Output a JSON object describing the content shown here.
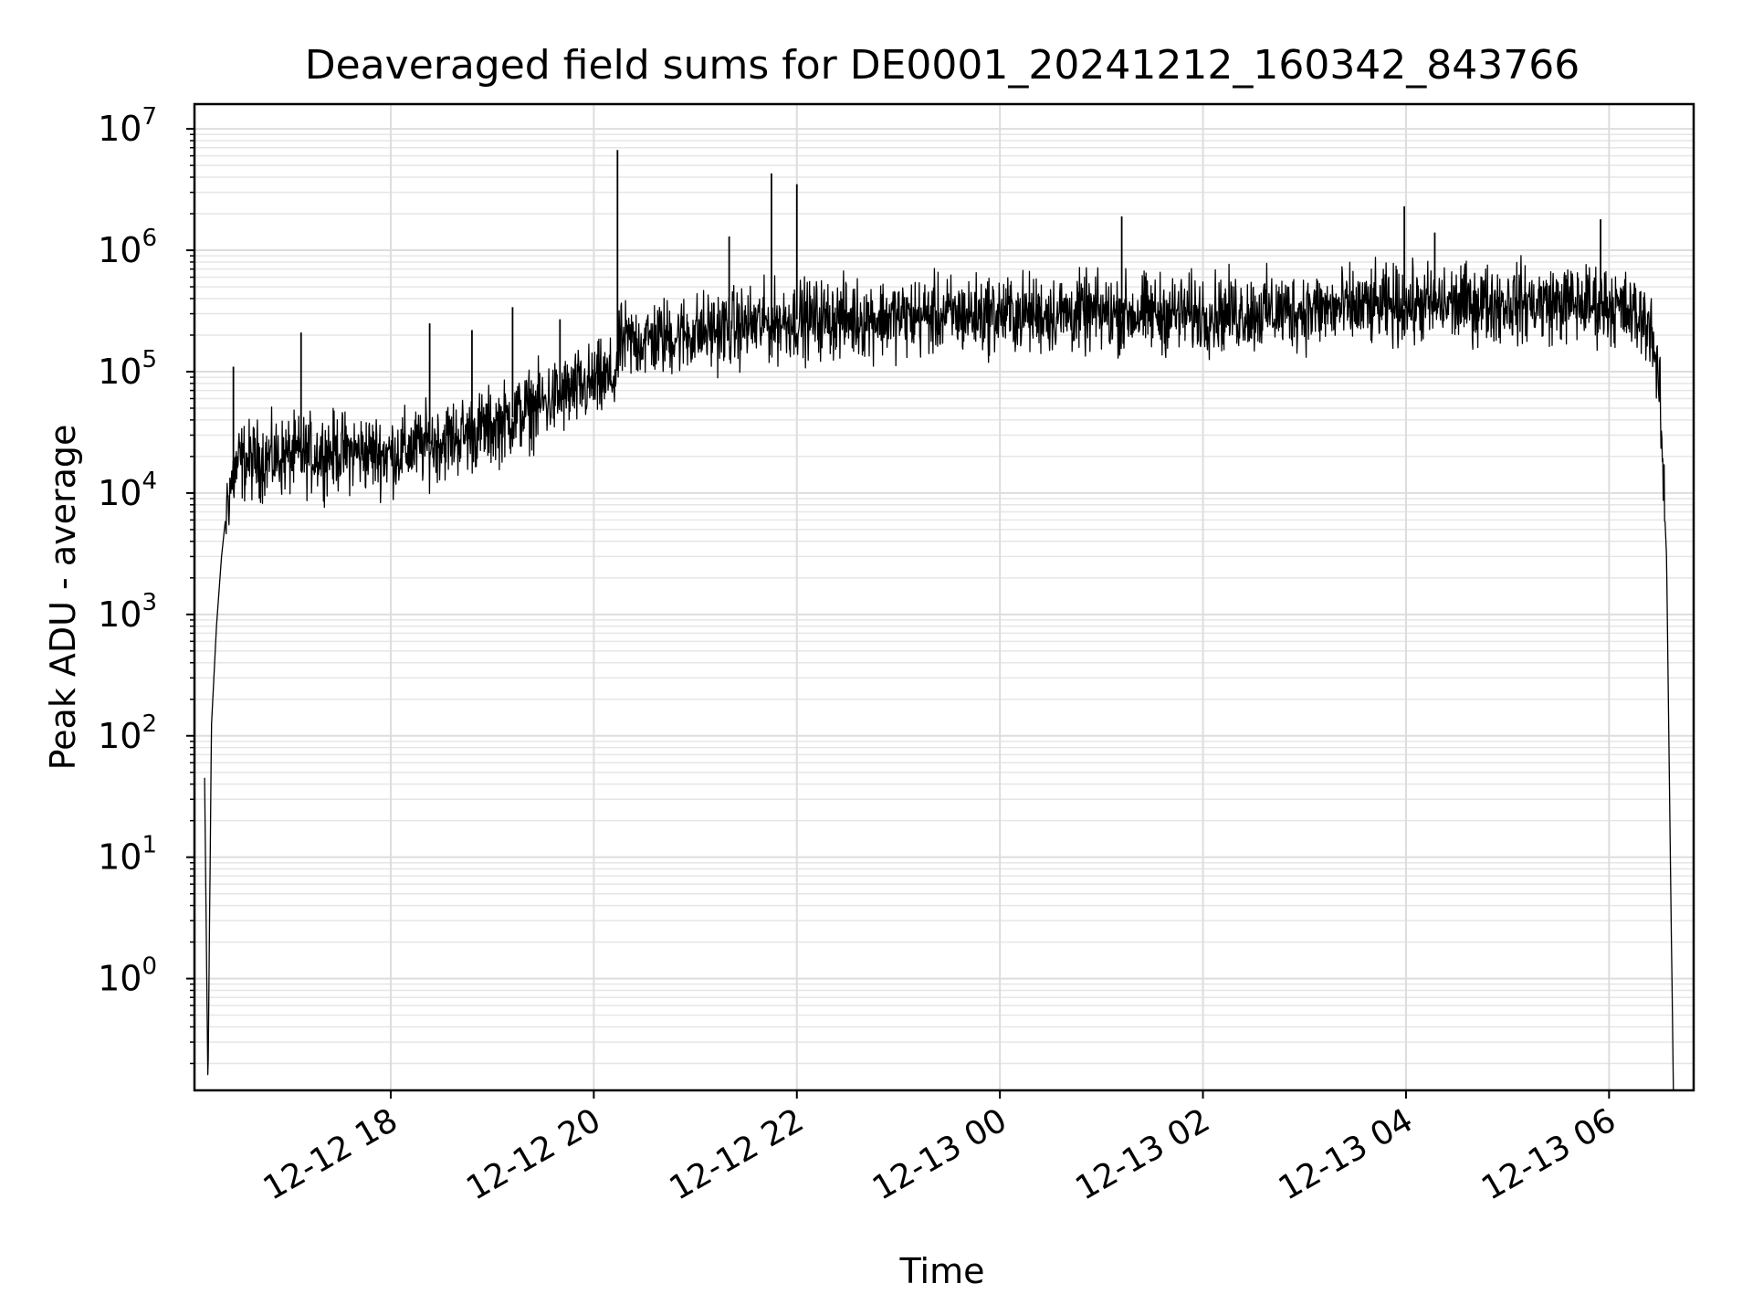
{
  "chart_data": {
    "type": "line",
    "title": "Deaveraged field sums for DE0001_20241212_160342_843766",
    "xlabel": "Time",
    "ylabel": "Peak ADU - average",
    "yscale": "log",
    "ylim": [
      0.12,
      16000000
    ],
    "xlim": [
      "2024-12-12 16:04",
      "2024-12-13 06:50"
    ],
    "grid": "on (major and minor, light gray)",
    "line_color": "#000000",
    "x_ticks": [
      "12-12 18",
      "12-12 20",
      "12-12 22",
      "12-13 00",
      "12-13 02",
      "12-13 04",
      "12-13 06"
    ],
    "y_ticks": [
      {
        "value": 1,
        "base": "10",
        "exponent": "0"
      },
      {
        "value": 10,
        "base": "10",
        "exponent": "1"
      },
      {
        "value": 100,
        "base": "10",
        "exponent": "2"
      },
      {
        "value": 1000,
        "base": "10",
        "exponent": "3"
      },
      {
        "value": 10000,
        "base": "10",
        "exponent": "4"
      },
      {
        "value": 100000,
        "base": "10",
        "exponent": "5"
      },
      {
        "value": 1000000,
        "base": "10",
        "exponent": "6"
      },
      {
        "value": 10000000,
        "base": "10",
        "exponent": "7"
      }
    ],
    "series": [
      {
        "points": [
          [
            "2024-12-12 16:10",
            45
          ],
          [
            "2024-12-12 16:12",
            0.12
          ],
          [
            "2024-12-12 16:14",
            120
          ],
          [
            "2024-12-12 16:17",
            800
          ],
          [
            "2024-12-12 16:20",
            3000
          ],
          [
            "2024-12-12 16:24",
            10000
          ],
          [
            "2024-12-12 16:30",
            18000
          ],
          [
            "2024-12-12 17:00",
            20000
          ],
          [
            "2024-12-12 17:30",
            22000
          ],
          [
            "2024-12-12 18:00",
            21000
          ],
          [
            "2024-12-12 18:30",
            27000
          ],
          [
            "2024-12-12 19:00",
            35000
          ],
          [
            "2024-12-12 19:30",
            55000
          ],
          [
            "2024-12-12 20:00",
            80000
          ],
          [
            "2024-12-12 20:13",
            90000
          ],
          [
            "2024-12-12 20:15",
            170000
          ],
          [
            "2024-12-12 21:00",
            210000
          ],
          [
            "2024-12-12 22:00",
            270000
          ],
          [
            "2024-12-12 23:00",
            280000
          ],
          [
            "2024-12-13 00:00",
            300000
          ],
          [
            "2024-12-13 01:00",
            300000
          ],
          [
            "2024-12-13 02:00",
            300000
          ],
          [
            "2024-12-13 03:00",
            320000
          ],
          [
            "2024-12-13 04:00",
            350000
          ],
          [
            "2024-12-13 05:00",
            370000
          ],
          [
            "2024-12-13 06:00",
            360000
          ],
          [
            "2024-12-13 06:25",
            250000
          ],
          [
            "2024-12-13 06:30",
            60000
          ],
          [
            "2024-12-13 06:34",
            3000
          ],
          [
            "2024-12-13 06:38",
            0.12
          ]
        ],
        "spikes": [
          [
            "2024-12-12 16:27",
            110000
          ],
          [
            "2024-12-12 17:07",
            210000
          ],
          [
            "2024-12-12 18:23",
            250000
          ],
          [
            "2024-12-12 18:48",
            220000
          ],
          [
            "2024-12-12 19:12",
            340000
          ],
          [
            "2024-12-12 19:40",
            270000
          ],
          [
            "2024-12-12 20:14",
            6700000
          ],
          [
            "2024-12-12 21:20",
            1300000
          ],
          [
            "2024-12-12 21:45",
            4300000
          ],
          [
            "2024-12-12 22:00",
            3500000
          ],
          [
            "2024-12-13 01:12",
            1900000
          ],
          [
            "2024-12-13 03:59",
            2300000
          ],
          [
            "2024-12-13 04:17",
            1400000
          ],
          [
            "2024-12-13 05:55",
            1800000
          ]
        ],
        "noise_amplitude_decades": 0.35
      }
    ]
  }
}
